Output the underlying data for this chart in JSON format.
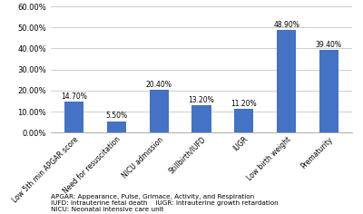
{
  "categories": [
    "Low 5th min APGAR score",
    "Need for resuscitation",
    "NICU admission",
    "Stillbirth/IUFD",
    "IUGR",
    "Low birth weight",
    "Prematurity"
  ],
  "values": [
    14.7,
    5.5,
    20.4,
    13.2,
    11.2,
    48.9,
    39.4
  ],
  "bar_color": "#4472C4",
  "ylim": [
    0,
    60
  ],
  "yticks": [
    0,
    10,
    20,
    30,
    40,
    50,
    60
  ],
  "ytick_labels": [
    "0.00%",
    "10.00%",
    "20.00%",
    "30.00%",
    "40.00%",
    "50.00%",
    "60.00%"
  ],
  "value_labels": [
    "14.70%",
    "5.50%",
    "20.40%",
    "13.20%",
    "11.20%",
    "48.90%",
    "39.40%"
  ],
  "footnote_lines": [
    "APGAR: Appearance, Pulse, Grimace, Activity, and Respiration",
    "IUFD: Intrauterine fetal death    IUGR: Intrauterine growth retardation",
    "NICU: Neonatal intensive care unit"
  ],
  "bar_width": 0.45,
  "label_fontsize": 5.5,
  "tick_fontsize": 6,
  "footnote_fontsize": 5.2,
  "value_label_fontsize": 5.5,
  "background_color": "#ffffff",
  "grid_color": "#bbbbbb"
}
